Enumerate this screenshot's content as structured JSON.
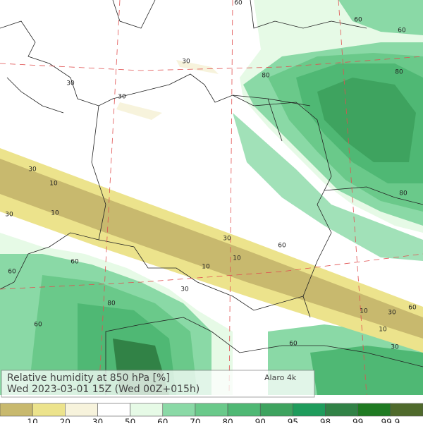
{
  "title": "Relative humidity at 850 hPa [%]",
  "subtitle": "Wed 2023-03-01 15Z (Wed 00Z+015h)",
  "model": "Alaro 4k",
  "contour_labels": [
    60,
    60,
    60,
    80,
    80,
    30,
    30,
    30,
    30,
    10,
    30,
    10,
    60,
    30,
    60,
    10,
    10,
    60,
    80,
    30,
    60,
    30,
    10,
    30,
    60,
    10,
    60,
    80
  ],
  "legend": {
    "levels": [
      10,
      20,
      30,
      50,
      60,
      70,
      80,
      90,
      95,
      98,
      99,
      99.9
    ],
    "colors": [
      "#c8b96e",
      "#ece38c",
      "#f7f3dc",
      "#ffffff",
      "#e6fae6",
      "#8ad9a6",
      "#6ac98a",
      "#4fb874",
      "#3ea35f",
      "#1f9c5c",
      "#318246",
      "#1f7a22",
      "#4f6a2c"
    ]
  }
}
